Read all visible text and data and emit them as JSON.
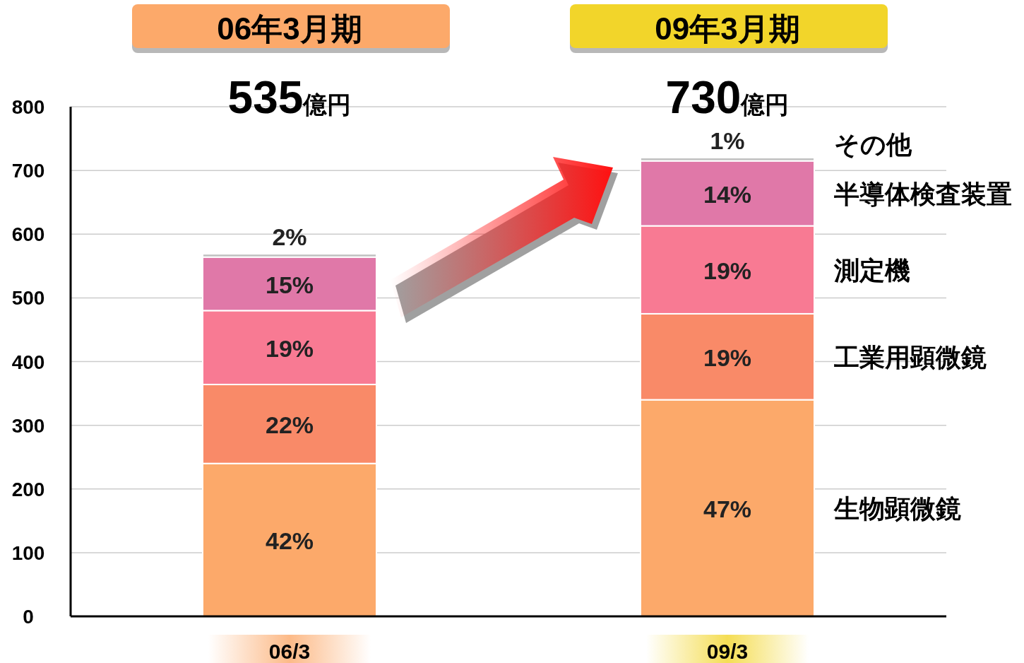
{
  "chart_data": {
    "type": "bar",
    "stacked": true,
    "categories": [
      "06/3",
      "09/3"
    ],
    "series": [
      {
        "name": "生物顕微鏡",
        "color": "#fca96a",
        "values": [
          240,
          340
        ]
      },
      {
        "name": "工業用顕微鏡",
        "color": "#f98a68",
        "values": [
          124,
          135
        ]
      },
      {
        "name": "測定機",
        "color": "#f87a93",
        "values": [
          116,
          138
        ]
      },
      {
        "name": "半導体検査装置",
        "color": "#e078a8",
        "values": [
          84,
          102
        ]
      },
      {
        "name": "その他",
        "color": "#c0c0c0",
        "values": [
          5,
          5
        ]
      }
    ],
    "annotations": [
      "06年3月期",
      "09年3月期",
      "535億円",
      "730億円",
      "42%",
      "47%",
      "22%",
      "19%",
      "19%",
      "19%",
      "15%",
      "14%",
      "2%",
      "1%"
    ],
    "ylim": [
      0,
      800
    ],
    "yticks": [
      0,
      100,
      200,
      300,
      400,
      500,
      600,
      700,
      800
    ],
    "grid": "y",
    "legend": "right"
  }
}
